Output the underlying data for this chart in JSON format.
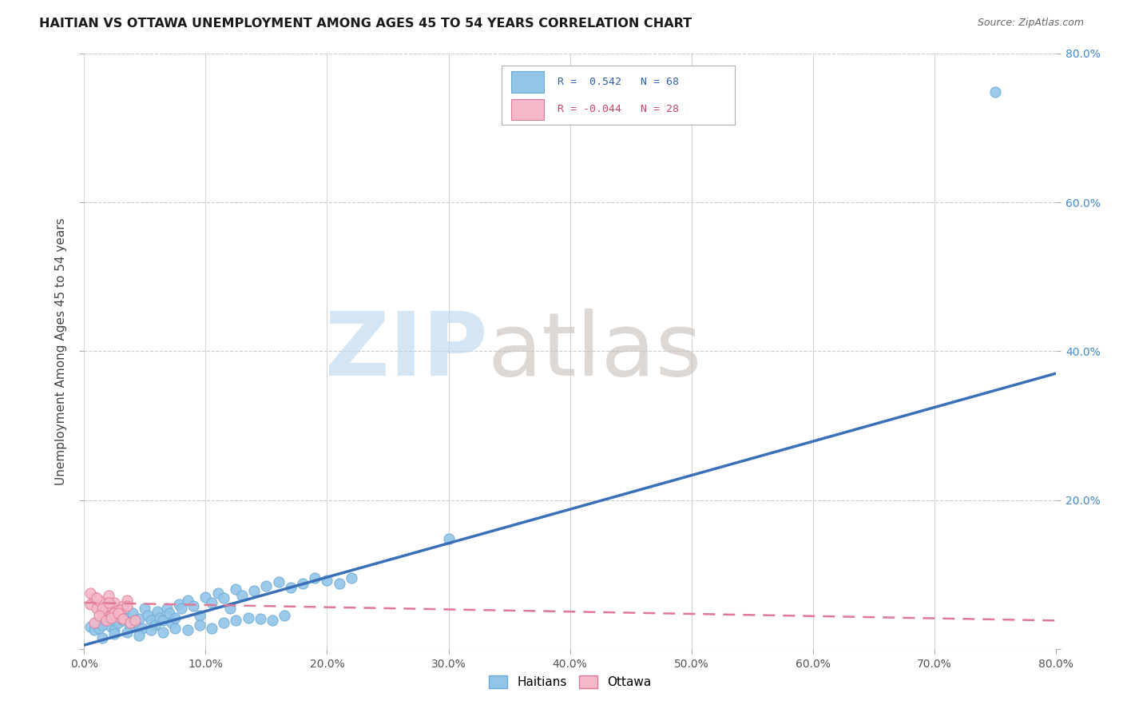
{
  "title": "HAITIAN VS OTTAWA UNEMPLOYMENT AMONG AGES 45 TO 54 YEARS CORRELATION CHART",
  "source": "Source: ZipAtlas.com",
  "ylabel_label": "Unemployment Among Ages 45 to 54 years",
  "xlim": [
    0.0,
    0.8
  ],
  "ylim": [
    0.0,
    0.8
  ],
  "xticks": [
    0.0,
    0.1,
    0.2,
    0.3,
    0.4,
    0.5,
    0.6,
    0.7,
    0.8
  ],
  "yticks": [
    0.0,
    0.2,
    0.4,
    0.6,
    0.8
  ],
  "xticklabels": [
    "0.0%",
    "10.0%",
    "20.0%",
    "30.0%",
    "40.0%",
    "50.0%",
    "60.0%",
    "70.0%",
    "80.0%"
  ],
  "yticklabels_right": [
    "",
    "20.0%",
    "40.0%",
    "60.0%",
    "80.0%"
  ],
  "grid_color": "#cccccc",
  "background_color": "#ffffff",
  "haitian_color": "#92c5e8",
  "haitian_edge_color": "#6aaad4",
  "ottawa_color": "#f4b8c8",
  "ottawa_edge_color": "#e07898",
  "haitian_line_color": "#3a70b8",
  "ottawa_line_color": "#e07898",
  "haitian_scatter_x": [
    0.005,
    0.008,
    0.01,
    0.012,
    0.015,
    0.018,
    0.02,
    0.022,
    0.025,
    0.028,
    0.03,
    0.032,
    0.035,
    0.038,
    0.04,
    0.042,
    0.045,
    0.048,
    0.05,
    0.052,
    0.055,
    0.058,
    0.06,
    0.062,
    0.065,
    0.068,
    0.07,
    0.072,
    0.075,
    0.078,
    0.08,
    0.085,
    0.09,
    0.095,
    0.1,
    0.105,
    0.11,
    0.115,
    0.12,
    0.125,
    0.13,
    0.14,
    0.15,
    0.16,
    0.17,
    0.18,
    0.19,
    0.2,
    0.21,
    0.22,
    0.015,
    0.025,
    0.035,
    0.045,
    0.055,
    0.065,
    0.075,
    0.085,
    0.095,
    0.105,
    0.115,
    0.125,
    0.135,
    0.145,
    0.155,
    0.165,
    0.3,
    0.75
  ],
  "haitian_scatter_y": [
    0.03,
    0.025,
    0.035,
    0.028,
    0.032,
    0.04,
    0.038,
    0.03,
    0.025,
    0.035,
    0.045,
    0.038,
    0.042,
    0.03,
    0.048,
    0.035,
    0.04,
    0.028,
    0.055,
    0.045,
    0.038,
    0.032,
    0.05,
    0.042,
    0.038,
    0.055,
    0.048,
    0.035,
    0.042,
    0.06,
    0.055,
    0.065,
    0.058,
    0.045,
    0.07,
    0.062,
    0.075,
    0.068,
    0.055,
    0.08,
    0.072,
    0.078,
    0.085,
    0.09,
    0.082,
    0.088,
    0.095,
    0.092,
    0.088,
    0.095,
    0.015,
    0.02,
    0.022,
    0.018,
    0.025,
    0.022,
    0.028,
    0.025,
    0.032,
    0.028,
    0.035,
    0.038,
    0.042,
    0.04,
    0.038,
    0.045,
    0.148,
    0.748
  ],
  "ottawa_scatter_x": [
    0.005,
    0.008,
    0.01,
    0.012,
    0.015,
    0.018,
    0.02,
    0.022,
    0.025,
    0.028,
    0.03,
    0.032,
    0.035,
    0.005,
    0.01,
    0.015,
    0.02,
    0.025,
    0.03,
    0.035,
    0.008,
    0.012,
    0.018,
    0.022,
    0.028,
    0.032,
    0.038,
    0.042
  ],
  "ottawa_scatter_y": [
    0.06,
    0.07,
    0.055,
    0.065,
    0.048,
    0.058,
    0.072,
    0.045,
    0.062,
    0.052,
    0.042,
    0.058,
    0.065,
    0.075,
    0.068,
    0.055,
    0.062,
    0.048,
    0.052,
    0.058,
    0.035,
    0.045,
    0.038,
    0.042,
    0.048,
    0.04,
    0.035,
    0.038
  ],
  "haitian_trendline_x": [
    0.0,
    0.8
  ],
  "haitian_trendline_y": [
    0.005,
    0.37
  ],
  "ottawa_trendline_x": [
    0.0,
    0.8
  ],
  "ottawa_trendline_y": [
    0.062,
    0.038
  ]
}
